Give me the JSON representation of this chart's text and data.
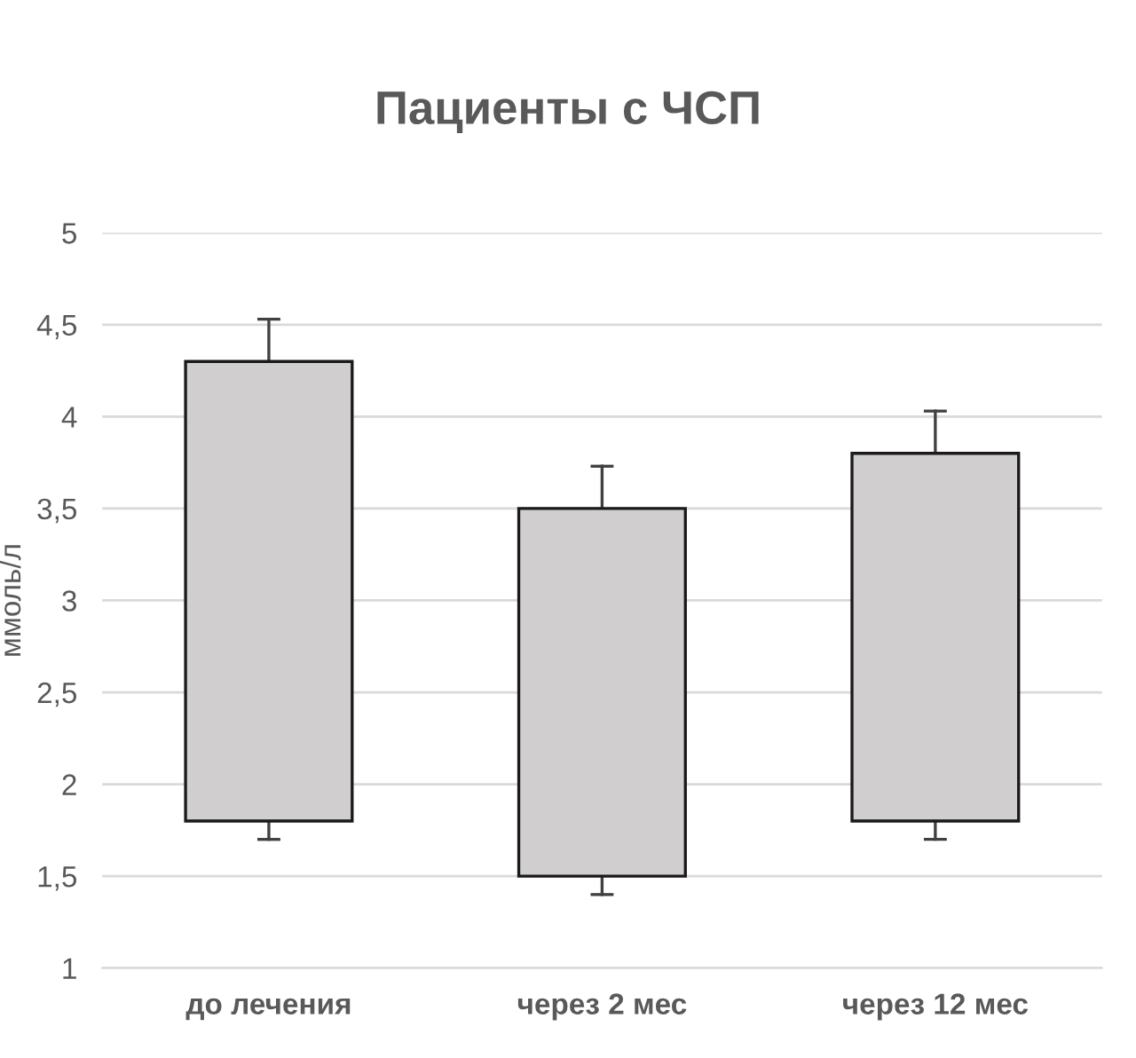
{
  "chart_data": {
    "type": "bar",
    "title": "Пациенты с ЧСП",
    "ylabel": "ммоль/л",
    "categories": [
      "до лечения",
      "через 2 мес",
      "через 12 мес"
    ],
    "base": [
      1.8,
      1.5,
      1.8
    ],
    "values": [
      2.5,
      2.0,
      2.0
    ],
    "errors": [
      [
        1.7,
        4.53
      ],
      [
        1.4,
        3.73
      ],
      [
        1.7,
        4.03
      ]
    ],
    "color": "#d0cece",
    "ylim": [
      1,
      5
    ],
    "yticks": [
      1,
      {
        "value": 1.5,
        "label": "1,5"
      },
      2,
      {
        "value": 2.5,
        "label": "2,5"
      },
      3,
      {
        "value": 3.5,
        "label": "3,5"
      },
      4,
      {
        "value": 4.5,
        "label": "4,5"
      },
      5
    ],
    "grid": "y",
    "legend": false
  }
}
